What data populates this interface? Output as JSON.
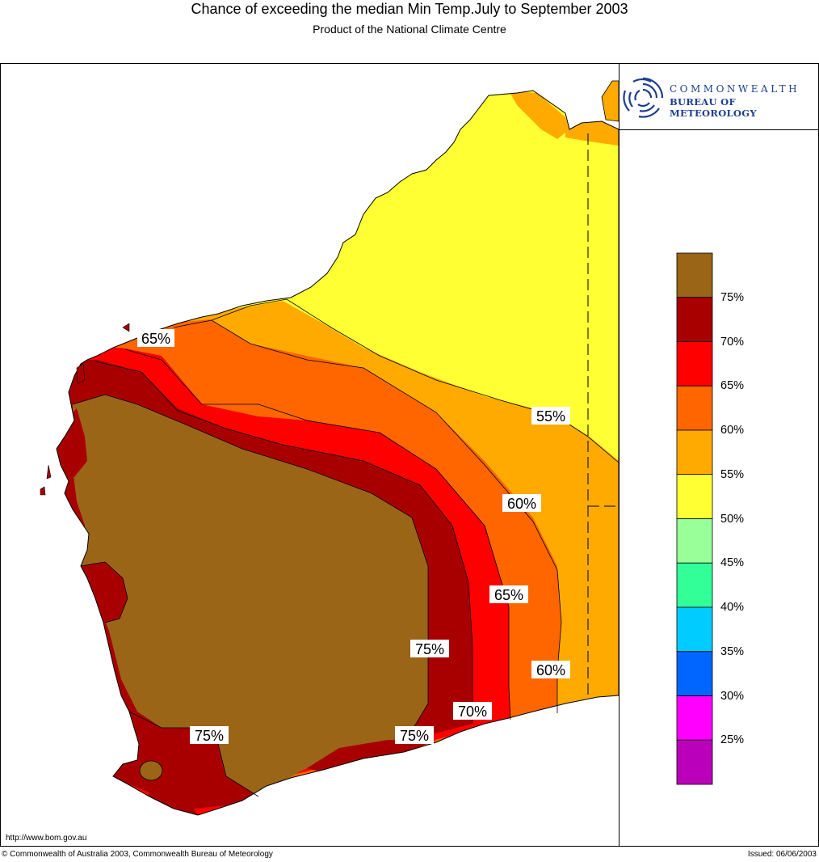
{
  "header": {
    "title": "Chance of exceeding the median Min Temp.July to September 2003",
    "subtitle": "Product of the National Climate Centre"
  },
  "logo": {
    "icon": "bureau-spiral-logo-icon",
    "line1": "COMMONWEALTH",
    "line2": "BUREAU OF METEOROLOGY"
  },
  "legend": {
    "bands": [
      {
        "color": "#9b6518",
        "label": ""
      },
      {
        "color": "#a80000",
        "label": "75%"
      },
      {
        "color": "#ff0000",
        "label": "70%"
      },
      {
        "color": "#ff6600",
        "label": "65%"
      },
      {
        "color": "#ffaa00",
        "label": "60%"
      },
      {
        "color": "#ffff33",
        "label": "55%"
      },
      {
        "color": "#99ff99",
        "label": "50%"
      },
      {
        "color": "#33ff99",
        "label": "45%"
      },
      {
        "color": "#00ccff",
        "label": "40%"
      },
      {
        "color": "#0066ff",
        "label": "35%"
      },
      {
        "color": "#ff00ff",
        "label": "30%"
      },
      {
        "color": "#bb00bb",
        "label": "25%"
      }
    ]
  },
  "map": {
    "contour_labels": [
      "65%",
      "55%",
      "60%",
      "65%",
      "75%",
      "60%",
      "70%",
      "75%",
      "75%"
    ]
  },
  "footer": {
    "url": "http://www.bom.gov.au",
    "copyright": "© Commonwealth of Australia 2003, Commonwealth Bureau of Meteorology",
    "issued": "Issued: 06/06/2003"
  }
}
